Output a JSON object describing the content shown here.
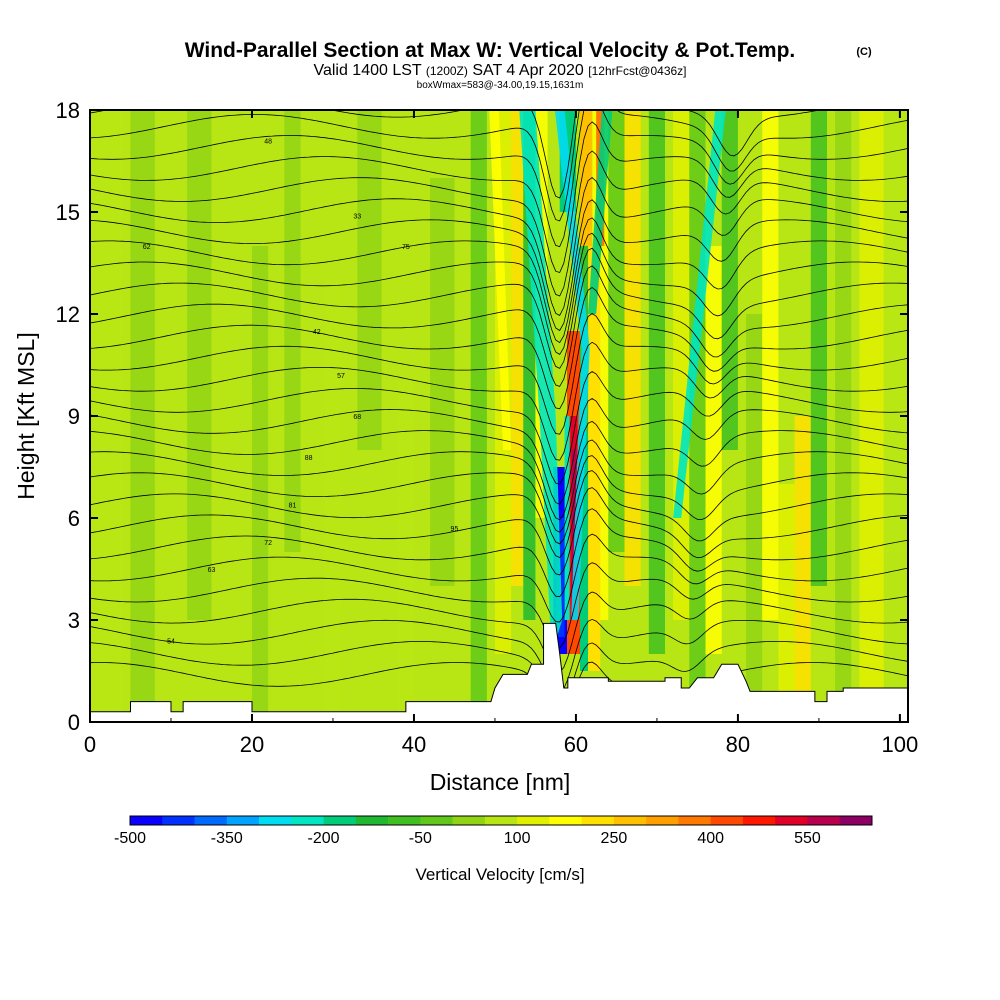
{
  "chart_data": {
    "type": "heatmap",
    "title": "Wind-Parallel Section at Max W: Vertical Velocity & Pot.Temp.",
    "title_mark": "(C)",
    "subtitle": {
      "part1": "Valid 1400 LST",
      "part2": "(1200Z)",
      "part3": "SAT 4 Apr 2020",
      "part4": "[12hrFcst@0436z]"
    },
    "annotation": "boxWmax=583@-34.00,19.15,1631m",
    "xlabel": "Distance [nm]",
    "ylabel": "Height [Kft MSL]",
    "xlim": [
      0,
      101
    ],
    "ylim": [
      0,
      18
    ],
    "xticks": [
      "0",
      "20",
      "40",
      "60",
      "80",
      "100"
    ],
    "xtick_values": [
      0,
      20,
      40,
      60,
      80,
      100
    ],
    "yticks": [
      "0",
      "3",
      "6",
      "9",
      "12",
      "15",
      "18"
    ],
    "ytick_values": [
      0,
      3,
      6,
      9,
      12,
      15,
      18
    ],
    "colorbar": {
      "label": "Vertical Velocity [cm/s]",
      "tick_labels": [
        "-500",
        "-350",
        "-200",
        "-50",
        "100",
        "250",
        "400",
        "550"
      ],
      "tick_values": [
        -500,
        -350,
        -200,
        -50,
        100,
        250,
        400,
        550
      ],
      "bin_width": 50,
      "colors": [
        "#0a00ff",
        "#0032ff",
        "#006aff",
        "#00a4ff",
        "#00dcf0",
        "#00e6c0",
        "#00cc7a",
        "#20b830",
        "#40c020",
        "#60c818",
        "#90d414",
        "#b8e614",
        "#e0f000",
        "#ffff00",
        "#ffe000",
        "#ffc000",
        "#ffa000",
        "#ff7800",
        "#ff4800",
        "#ff1800",
        "#e00028",
        "#b8004c",
        "#8c0064"
      ]
    },
    "terrain": [
      [
        0,
        0.3
      ],
      [
        5,
        0.3
      ],
      [
        5,
        0.6
      ],
      [
        10,
        0.6
      ],
      [
        10,
        0.3
      ],
      [
        11.5,
        0.3
      ],
      [
        11.5,
        0.6
      ],
      [
        20,
        0.6
      ],
      [
        20,
        0.3
      ],
      [
        39,
        0.3
      ],
      [
        39,
        0.6
      ],
      [
        49.5,
        0.6
      ],
      [
        50,
        1.0
      ],
      [
        51,
        1.4
      ],
      [
        54,
        1.4
      ],
      [
        54.5,
        1.7
      ],
      [
        56,
        1.7
      ],
      [
        56,
        2.9
      ],
      [
        57.5,
        2.9
      ],
      [
        58,
        2.0
      ],
      [
        58.5,
        1.0
      ],
      [
        59,
        1.0
      ],
      [
        59,
        1.3
      ],
      [
        64,
        1.3
      ],
      [
        64,
        1.2
      ],
      [
        71,
        1.2
      ],
      [
        71,
        1.3
      ],
      [
        73,
        1.3
      ],
      [
        73,
        1.0
      ],
      [
        74,
        1.0
      ],
      [
        75,
        1.3
      ],
      [
        77,
        1.3
      ],
      [
        78,
        1.7
      ],
      [
        80,
        1.7
      ],
      [
        81,
        1.2
      ],
      [
        81.5,
        0.9
      ],
      [
        89.5,
        0.9
      ],
      [
        89.5,
        0.6
      ],
      [
        91,
        0.6
      ],
      [
        91,
        0.9
      ],
      [
        93,
        0.9
      ],
      [
        93,
        1.0
      ],
      [
        101,
        1.0
      ]
    ],
    "theta_labels": [
      "54",
      "63",
      "72",
      "81",
      "88",
      "68",
      "57",
      "42",
      "33",
      "48",
      "62",
      "75",
      "95"
    ]
  }
}
